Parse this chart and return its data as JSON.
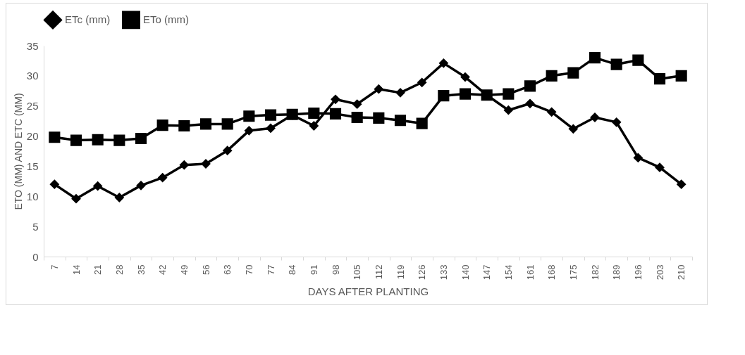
{
  "chart_data": {
    "type": "line",
    "xlabel": "DAYS AFTER PLANTING",
    "ylabel": "ETO  (MM) AND ETC (MM)",
    "categories": [
      "7",
      "14",
      "21",
      "28",
      "35",
      "42",
      "49",
      "56",
      "63",
      "70",
      "77",
      "84",
      "91",
      "98",
      "105",
      "112",
      "119",
      "126",
      "133",
      "140",
      "147",
      "154",
      "161",
      "168",
      "175",
      "182",
      "189",
      "196",
      "203",
      "210"
    ],
    "series": [
      {
        "name": "ETc (mm)",
        "color": "#000000",
        "marker": "diamond",
        "values": [
          12,
          9.6,
          11.7,
          9.8,
          11.8,
          13.1,
          15.2,
          15.4,
          17.6,
          20.9,
          21.3,
          23.5,
          21.7,
          26.1,
          25.3,
          27.8,
          27.2,
          28.9,
          32.1,
          29.8,
          26.8,
          24.3,
          25.4,
          24,
          21.2,
          23.1,
          22.3,
          16.4,
          14.8,
          12
        ]
      },
      {
        "name": "ETo (mm)",
        "color": "#000000",
        "marker": "square",
        "values": [
          19.8,
          19.3,
          19.4,
          19.3,
          19.6,
          21.8,
          21.7,
          22,
          22,
          23.3,
          23.5,
          23.6,
          23.8,
          23.7,
          23.1,
          23,
          22.6,
          22.1,
          26.7,
          27,
          26.8,
          27,
          28.3,
          30,
          30.5,
          33,
          31.9,
          32.6,
          29.5,
          30
        ]
      }
    ],
    "ylim": [
      0,
      35
    ],
    "yticks": [
      0,
      5,
      10,
      15,
      20,
      25,
      30,
      35
    ],
    "grid": false,
    "legend": "top",
    "line_style": "solid"
  }
}
